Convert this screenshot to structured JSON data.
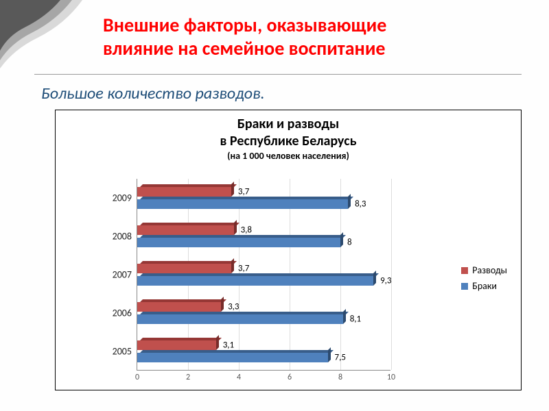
{
  "slide": {
    "title_line1": "Внешние факторы, оказывающие",
    "title_line2": "влияние на семейное воспитание",
    "title_color": "#ff0000",
    "title_fontsize": 28,
    "subtitle": "Большое  количество  разводов.",
    "subtitle_color": "#1f4e79",
    "subtitle_fontsize": 24
  },
  "chart": {
    "type": "bar-horizontal-3d",
    "title_line1": "Браки и разводы",
    "title_line2": "в Республике Беларусь",
    "title_sub": "(на 1 000 человек населения)",
    "title_fontsize": 20,
    "subtitle_fontsize": 14,
    "categories": [
      "2009",
      "2008",
      "2007",
      "2006",
      "2005"
    ],
    "series": [
      {
        "name": "Разводы",
        "color_front": "#c0504d",
        "color_top": "#953735",
        "color_side": "#772c2a",
        "values": [
          3.7,
          3.8,
          3.7,
          3.3,
          3.1
        ],
        "labels": [
          "3,7",
          "3,8",
          "3,7",
          "3,3",
          "3,1"
        ]
      },
      {
        "name": "Браки",
        "color_front": "#4f81bd",
        "color_top": "#385d8a",
        "color_side": "#2c4a6e",
        "values": [
          8.3,
          8.0,
          9.3,
          8.1,
          7.5
        ],
        "labels": [
          "8,3",
          "8",
          "9,3",
          "8,1",
          "7,5"
        ]
      }
    ],
    "xlim": [
      0,
      10
    ],
    "xtick_step": 2,
    "xticks": [
      0,
      2,
      4,
      6,
      8,
      10
    ],
    "grid_color": "#dddddd",
    "axis_color": "#888888",
    "label_fontsize": 13,
    "background_color": "#ffffff"
  },
  "legend": {
    "items": [
      {
        "label": "Разводы",
        "color": "#c0504d"
      },
      {
        "label": "Браки",
        "color": "#4f81bd"
      }
    ]
  }
}
